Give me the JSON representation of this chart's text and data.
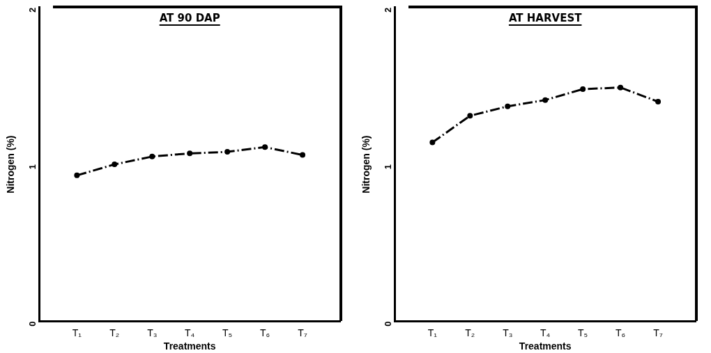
{
  "chart_data": [
    {
      "type": "line",
      "title": "AT 90 DAP",
      "xlabel": "Treatments",
      "ylabel": "Nitrogen (%)",
      "categories": [
        "T₁",
        "T₂",
        "T₃",
        "T₄",
        "T₅",
        "T₆",
        "T₇"
      ],
      "series": [
        {
          "color": "#000000",
          "values": [
            0.93,
            1.0,
            1.05,
            1.07,
            1.08,
            1.11,
            1.06
          ]
        }
      ],
      "ylim": [
        0,
        2
      ],
      "yticks": [
        0,
        1,
        2
      ],
      "grid": false,
      "legend": false,
      "marker": "circle",
      "line_style": "dashed"
    },
    {
      "type": "line",
      "title": "AT HARVEST",
      "xlabel": "Treatments",
      "ylabel": "Nitrogen (%)",
      "categories": [
        "T₁",
        "T₂",
        "T₃",
        "T₄",
        "T₅",
        "T₆",
        "T₇"
      ],
      "series": [
        {
          "color": "#000000",
          "values": [
            1.14,
            1.31,
            1.37,
            1.41,
            1.48,
            1.49,
            1.4
          ]
        }
      ],
      "ylim": [
        0,
        2
      ],
      "yticks": [
        0,
        1,
        2
      ],
      "grid": false,
      "legend": false,
      "marker": "circle",
      "line_style": "dashed"
    }
  ]
}
